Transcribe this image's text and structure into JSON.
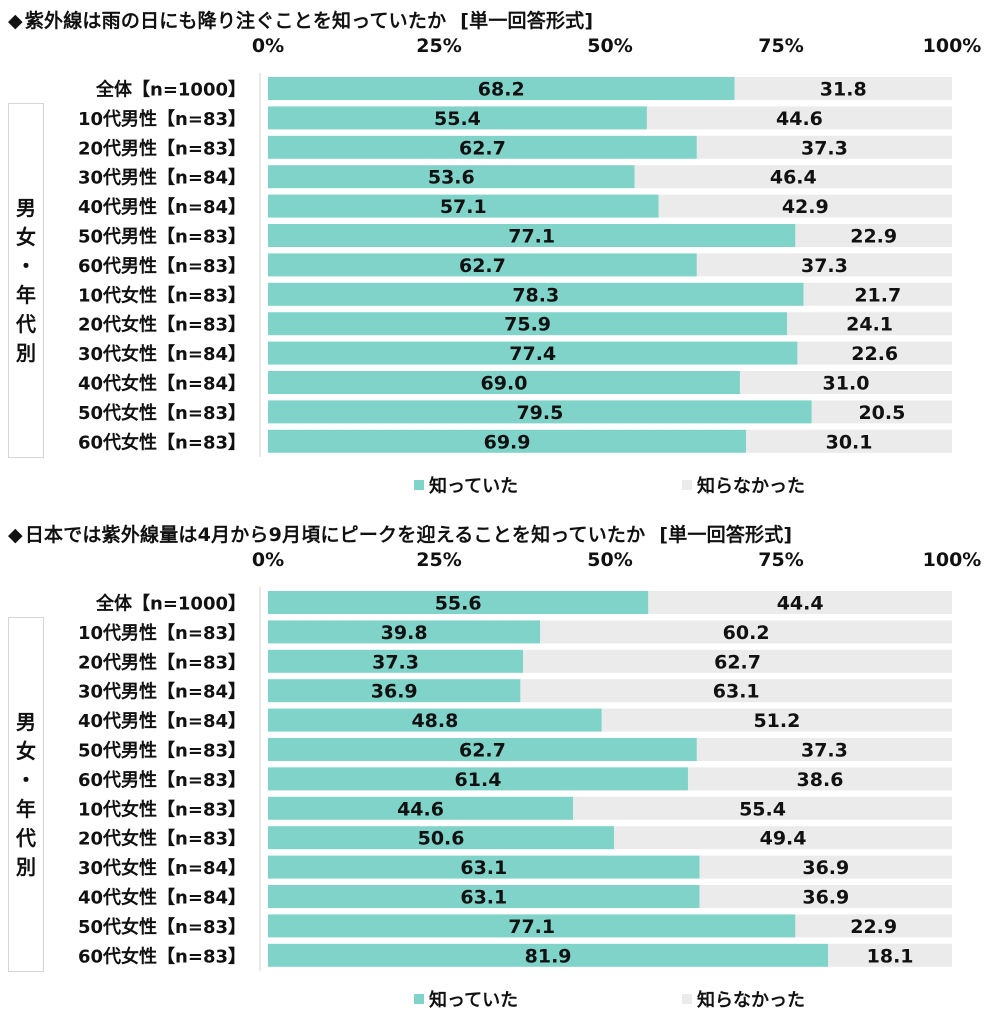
{
  "chart_data": [
    {
      "type": "bar",
      "orientation": "horizontal-stacked-100",
      "bullet": "◆",
      "title": "紫外線は雨の日にも降り注ぐことを知っていたか",
      "question_type": "[単一回答形式]",
      "x_ticks": [
        "0%",
        "25%",
        "50%",
        "75%",
        "100%"
      ],
      "xlim": [
        0,
        100
      ],
      "group_label": [
        "男",
        "女",
        "・",
        "年",
        "代",
        "別"
      ],
      "categories": [
        "全体【n=1000】",
        "10代男性【n=83】",
        "20代男性【n=83】",
        "30代男性【n=84】",
        "40代男性【n=84】",
        "50代男性【n=83】",
        "60代男性【n=83】",
        "10代女性【n=83】",
        "20代女性【n=83】",
        "30代女性【n=84】",
        "40代女性【n=84】",
        "50代女性【n=83】",
        "60代女性【n=83】"
      ],
      "series": [
        {
          "name": "知っていた",
          "color": "#7fd3c9",
          "values": [
            "68.2",
            "55.4",
            "62.7",
            "53.6",
            "57.1",
            "77.1",
            "62.7",
            "78.3",
            "75.9",
            "77.4",
            "69.0",
            "79.5",
            "69.9"
          ]
        },
        {
          "name": "知らなかった",
          "color": "#ebebeb",
          "values": [
            "31.8",
            "44.6",
            "37.3",
            "46.4",
            "42.9",
            "22.9",
            "37.3",
            "21.7",
            "24.1",
            "22.6",
            "31.0",
            "20.5",
            "30.1"
          ]
        }
      ]
    },
    {
      "type": "bar",
      "orientation": "horizontal-stacked-100",
      "bullet": "◆",
      "title": "日本では紫外線量は4月から9月頃にピークを迎えることを知っていたか",
      "question_type": "[単一回答形式]",
      "x_ticks": [
        "0%",
        "25%",
        "50%",
        "75%",
        "100%"
      ],
      "xlim": [
        0,
        100
      ],
      "group_label": [
        "男",
        "女",
        "・",
        "年",
        "代",
        "別"
      ],
      "categories": [
        "全体【n=1000】",
        "10代男性【n=83】",
        "20代男性【n=83】",
        "30代男性【n=84】",
        "40代男性【n=84】",
        "50代男性【n=83】",
        "60代男性【n=83】",
        "10代女性【n=83】",
        "20代女性【n=83】",
        "30代女性【n=84】",
        "40代女性【n=84】",
        "50代女性【n=83】",
        "60代女性【n=83】"
      ],
      "series": [
        {
          "name": "知っていた",
          "color": "#7fd3c9",
          "values": [
            "55.6",
            "39.8",
            "37.3",
            "36.9",
            "48.8",
            "62.7",
            "61.4",
            "44.6",
            "50.6",
            "63.1",
            "63.1",
            "77.1",
            "81.9"
          ]
        },
        {
          "name": "知らなかった",
          "color": "#ebebeb",
          "values": [
            "44.4",
            "60.2",
            "62.7",
            "63.1",
            "51.2",
            "37.3",
            "38.6",
            "55.4",
            "49.4",
            "36.9",
            "36.9",
            "22.9",
            "18.1"
          ]
        }
      ]
    }
  ]
}
